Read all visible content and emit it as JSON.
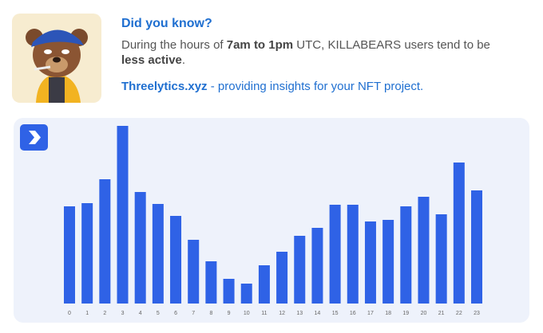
{
  "header": {
    "title": "Did you know?",
    "body": [
      "During the hours of ",
      "7am to 1pm",
      " UTC, KILLABEARS users tend to be",
      "less active",
      "."
    ],
    "link": "Threelytics.xyz",
    "tagline": " - providing insights for your NFT project."
  },
  "chart_data": {
    "type": "bar",
    "categories": [
      "0",
      "1",
      "2",
      "3",
      "4",
      "5",
      "6",
      "7",
      "8",
      "9",
      "10",
      "11",
      "12",
      "13",
      "14",
      "15",
      "16",
      "17",
      "18",
      "19",
      "20",
      "21",
      "22",
      "23"
    ],
    "values": [
      122,
      126,
      156,
      223,
      140,
      125,
      110,
      80,
      53,
      31,
      25,
      48,
      65,
      85,
      95,
      124,
      124,
      103,
      105,
      122,
      134,
      112,
      177,
      142
    ],
    "color": "#2f62e6",
    "ylim": [
      0,
      230
    ]
  }
}
